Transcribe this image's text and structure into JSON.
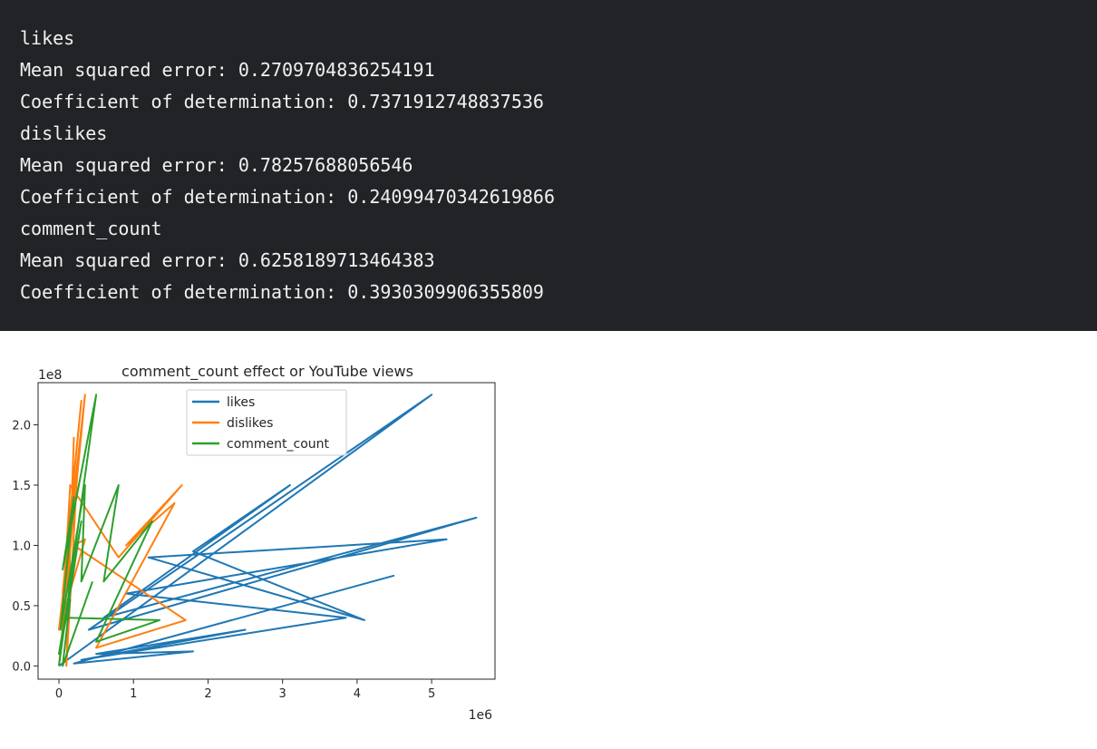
{
  "output": {
    "lines": [
      "likes",
      "Mean squared error: 0.2709704836254191",
      "Coefficient of determination: 0.7371912748837536",
      "dislikes",
      "Mean squared error: 0.78257688056546",
      "Coefficient of determination: 0.24099470342619866",
      "comment_count",
      "Mean squared error: 0.6258189713464383",
      "Coefficient of determination: 0.3930309906355809"
    ]
  },
  "chart_data": {
    "type": "line",
    "title": "comment_count effect or YouTube views",
    "xlabel": "",
    "ylabel": "",
    "x_offset_label": "1e6",
    "y_offset_label": "1e8",
    "xlim": [
      -0.28,
      5.85
    ],
    "ylim": [
      -0.11,
      2.35
    ],
    "x_ticks": [
      0,
      1,
      2,
      3,
      4,
      5
    ],
    "y_ticks": [
      0.0,
      0.5,
      1.0,
      1.5,
      2.0
    ],
    "y_tick_labels": [
      "0.0",
      "0.5",
      "1.0",
      "1.5",
      "2.0"
    ],
    "legend_position": "top-center",
    "grid": false,
    "series": [
      {
        "name": "likes",
        "color": "#1f77b4",
        "x": [
          0,
          5.0,
          0.4,
          5.6,
          0.6,
          3.1,
          1.8,
          4.1,
          1.2,
          5.2,
          0.9,
          3.85,
          0.3,
          2.5,
          0.5,
          1.8,
          0.2,
          4.5
        ],
        "y": [
          0,
          2.25,
          0.3,
          1.23,
          0.4,
          1.5,
          0.95,
          0.38,
          0.9,
          1.05,
          0.6,
          0.4,
          0.05,
          0.3,
          0.1,
          0.12,
          0.02,
          0.75
        ]
      },
      {
        "name": "dislikes",
        "color": "#ff7f0e",
        "x": [
          0,
          0.35,
          0.05,
          0.3,
          0.1,
          0.15,
          0.8,
          1.65,
          0.9,
          1.55,
          0.5,
          1.7,
          0.2,
          0.35,
          0.0,
          0.25,
          0.1,
          0.2
        ],
        "y": [
          0,
          2.25,
          0.6,
          2.2,
          0.95,
          1.5,
          0.9,
          1.5,
          1.0,
          1.35,
          0.15,
          0.38,
          1.0,
          1.05,
          0.3,
          1.65,
          0.0,
          1.9
        ]
      },
      {
        "name": "comment_count",
        "color": "#2ca02c",
        "x": [
          0,
          0.5,
          0.05,
          0.2,
          0.02,
          0.35,
          0.3,
          0.8,
          0.6,
          1.25,
          0.5,
          1.35,
          0.1,
          0.3,
          0.0,
          0.15,
          0.05,
          0.45
        ],
        "y": [
          0,
          2.25,
          0.8,
          1.4,
          0.3,
          1.5,
          0.7,
          1.5,
          0.7,
          1.2,
          0.2,
          0.38,
          0.4,
          1.2,
          0.1,
          0.55,
          0.0,
          0.7
        ]
      }
    ]
  }
}
